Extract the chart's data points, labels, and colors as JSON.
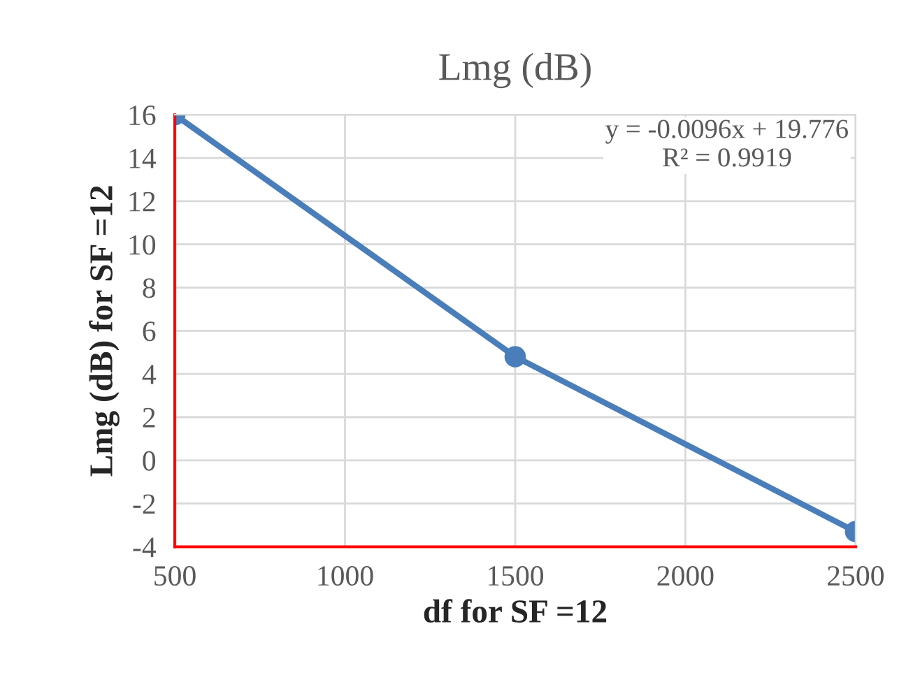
{
  "chart_data": {
    "type": "line",
    "title": "Lmg (dB)",
    "xlabel": "df for SF =12",
    "ylabel": "Lmg (dB) for SF =12",
    "x": [
      500,
      1500,
      2500
    ],
    "series": [
      {
        "color": "#4a7ebb",
        "values": [
          16,
          4.8,
          -3.3
        ]
      }
    ],
    "xlim": [
      500,
      2500
    ],
    "xticks": [
      500,
      1000,
      1500,
      2000,
      2500
    ],
    "ylim": [
      -4,
      16
    ],
    "yticks": [
      -4,
      -2,
      0,
      2,
      4,
      6,
      8,
      10,
      12,
      14,
      16
    ],
    "grid": true,
    "marker": "circle",
    "line_style": "solid",
    "annotations": [
      "y = -0.0096x + 19.776",
      "R² = 0.9919"
    ]
  }
}
